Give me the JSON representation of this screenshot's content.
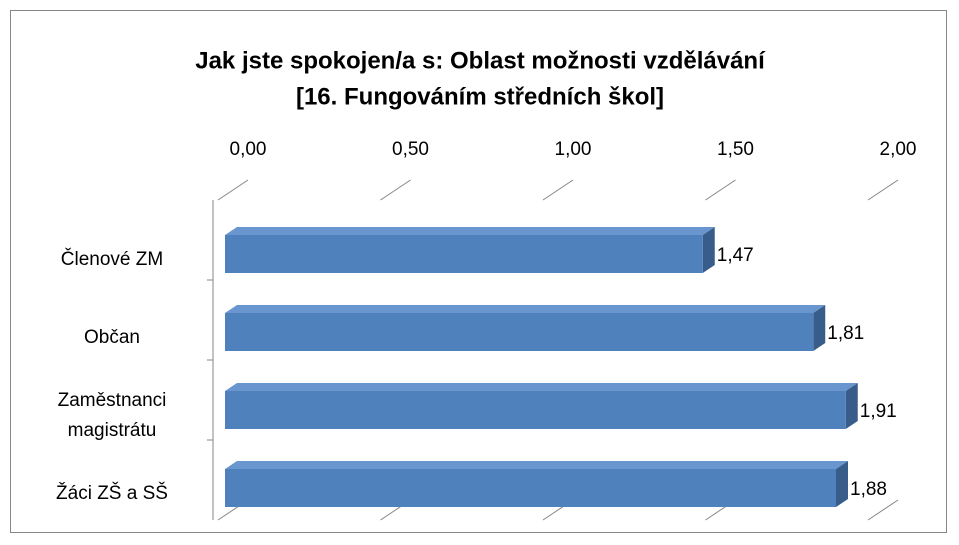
{
  "chart_data": {
    "type": "bar3d_horizontal",
    "title": [
      "Jak jste spokojen/a s: Oblast možnosti vzdělávání",
      "[16. Fungováním středních škol]"
    ],
    "categories": [
      "Členové ZM",
      "Občan",
      "Zaměstnanci magistrátu",
      "Žáci ZŠ a SŠ"
    ],
    "values": [
      1.47,
      1.81,
      1.91,
      1.88
    ],
    "value_labels": [
      "1,47",
      "1,81",
      "1,91",
      "1,88"
    ],
    "color": "#4f81bd",
    "xlim": [
      0,
      2
    ],
    "xticks": [
      {
        "value": 0,
        "label": "0,00"
      },
      {
        "value": 0.5,
        "label": "0,50"
      },
      {
        "value": 1,
        "label": "1,00"
      },
      {
        "value": 1.5,
        "label": "1,50"
      },
      {
        "value": 2,
        "label": "2,00"
      }
    ],
    "grid": false
  }
}
